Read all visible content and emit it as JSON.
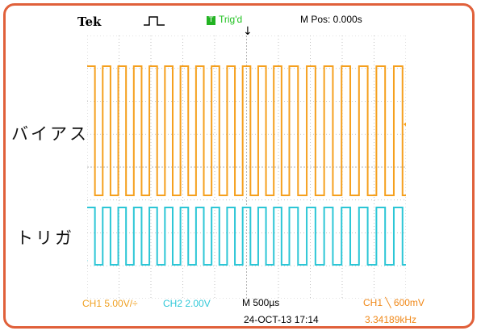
{
  "scope": {
    "brand": "Tek",
    "trigger_state": "Trig'd",
    "trigger_state_icon": "T",
    "main_position": "M Pos: 0.000s",
    "timebase": "M 500µs",
    "date_time": "24-OCT-13 17:14",
    "trigger_setting": "CH1 ╲ 600mV",
    "frequency": "3.34189kHz"
  },
  "channels": [
    {
      "id": "CH1",
      "color": "#f5a01e",
      "scale": "CH1 5.00V/÷",
      "label": "バイアス"
    },
    {
      "id": "CH2",
      "color": "#2cc6d6",
      "scale": "CH2 2.00V",
      "label": "トリガ",
      "marker": "2+"
    }
  ],
  "colors": {
    "frame": "#e0603a",
    "screen_background": "#ffffff",
    "grid": "#b4b4b4"
  },
  "icons": {
    "acquisition": "square-pulse-icon",
    "trigger_position": "down-arrow-icon",
    "trigger_level": "arrow-left-icon"
  }
}
